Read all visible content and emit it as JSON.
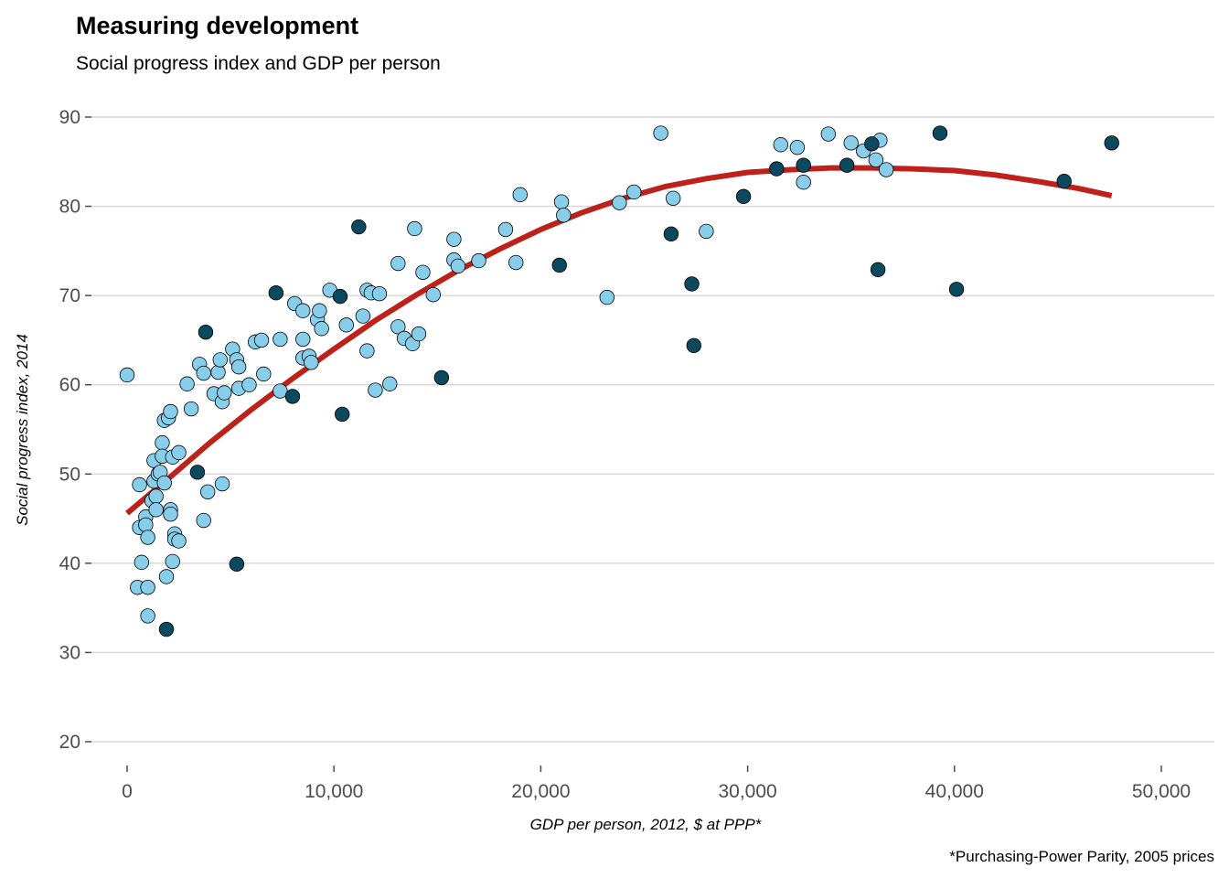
{
  "chart_data": {
    "type": "scatter",
    "title": "Measuring development",
    "subtitle": "Social progress index and GDP per person",
    "xlabel": "GDP per person, 2012, $ at PPP*",
    "ylabel": "Social progress index, 2014",
    "caption": "*Purchasing-Power Parity, 2005 prices",
    "xlim": [
      -2500,
      52000
    ],
    "ylim": [
      18,
      93
    ],
    "x_ticks": [
      0,
      10000,
      20000,
      30000,
      40000,
      50000
    ],
    "x_tick_labels": [
      "0",
      "10,000",
      "20,000",
      "30,000",
      "40,000",
      "50,000"
    ],
    "y_ticks": [
      20,
      30,
      40,
      50,
      60,
      70,
      80,
      90
    ],
    "y_tick_labels": [
      "20",
      "30",
      "40",
      "50",
      "60",
      "70",
      "80",
      "90"
    ],
    "grid": "horizontal",
    "legend": "none",
    "colors": {
      "light": "#87CEEB",
      "dark": "#0B4A5E",
      "trend": "#C0201A",
      "outline": "#000000"
    },
    "series": [
      {
        "color": "#87CEEB",
        "points": [
          [
            0,
            61.1
          ],
          [
            600,
            48.8
          ],
          [
            600,
            44.0
          ],
          [
            700,
            40.1
          ],
          [
            500,
            37.3
          ],
          [
            900,
            45.2
          ],
          [
            900,
            44.3
          ],
          [
            1000,
            42.9
          ],
          [
            1000,
            37.3
          ],
          [
            1000,
            34.1
          ],
          [
            1200,
            47.0
          ],
          [
            1300,
            49.2
          ],
          [
            1300,
            51.5
          ],
          [
            1400,
            47.5
          ],
          [
            1400,
            46.0
          ],
          [
            1500,
            50.0
          ],
          [
            1600,
            50.2
          ],
          [
            1700,
            53.5
          ],
          [
            1700,
            52.0
          ],
          [
            1800,
            49.0
          ],
          [
            1800,
            56.0
          ],
          [
            1900,
            38.5
          ],
          [
            2000,
            56.3
          ],
          [
            2100,
            57.0
          ],
          [
            2100,
            46.0
          ],
          [
            2100,
            45.5
          ],
          [
            2200,
            40.2
          ],
          [
            2200,
            51.9
          ],
          [
            2300,
            43.3
          ],
          [
            2300,
            42.7
          ],
          [
            2500,
            52.4
          ],
          [
            2500,
            42.5
          ],
          [
            2900,
            60.1
          ],
          [
            3100,
            57.3
          ],
          [
            3500,
            62.3
          ],
          [
            3700,
            61.3
          ],
          [
            3700,
            44.8
          ],
          [
            3900,
            48.0
          ],
          [
            4200,
            59.0
          ],
          [
            4400,
            61.4
          ],
          [
            4500,
            62.8
          ],
          [
            4600,
            58.1
          ],
          [
            4600,
            48.9
          ],
          [
            4700,
            59.1
          ],
          [
            5100,
            64.0
          ],
          [
            5300,
            62.8
          ],
          [
            5400,
            62.0
          ],
          [
            5400,
            59.6
          ],
          [
            5900,
            60.0
          ],
          [
            6200,
            64.8
          ],
          [
            6500,
            65.0
          ],
          [
            6600,
            61.2
          ],
          [
            7400,
            65.1
          ],
          [
            7400,
            59.3
          ],
          [
            8100,
            69.1
          ],
          [
            8500,
            68.3
          ],
          [
            8500,
            63.0
          ],
          [
            8500,
            65.1
          ],
          [
            8800,
            63.2
          ],
          [
            8900,
            62.5
          ],
          [
            9200,
            67.3
          ],
          [
            9300,
            68.3
          ],
          [
            9400,
            66.3
          ],
          [
            9800,
            70.6
          ],
          [
            10600,
            66.7
          ],
          [
            11400,
            67.7
          ],
          [
            11600,
            63.8
          ],
          [
            11600,
            70.6
          ],
          [
            11800,
            70.3
          ],
          [
            12000,
            59.4
          ],
          [
            12200,
            70.2
          ],
          [
            12700,
            60.1
          ],
          [
            13100,
            73.6
          ],
          [
            13100,
            66.5
          ],
          [
            13400,
            65.2
          ],
          [
            13800,
            64.6
          ],
          [
            13900,
            77.5
          ],
          [
            14100,
            65.7
          ],
          [
            14300,
            72.6
          ],
          [
            14800,
            70.1
          ],
          [
            15800,
            76.3
          ],
          [
            15800,
            74.0
          ],
          [
            16000,
            73.3
          ],
          [
            17000,
            73.9
          ],
          [
            18300,
            77.4
          ],
          [
            18800,
            73.7
          ],
          [
            19000,
            81.3
          ],
          [
            21000,
            80.5
          ],
          [
            21100,
            79.0
          ],
          [
            23200,
            69.8
          ],
          [
            23800,
            80.4
          ],
          [
            24500,
            81.6
          ],
          [
            25800,
            88.2
          ],
          [
            26400,
            80.9
          ],
          [
            28000,
            77.2
          ],
          [
            31600,
            86.9
          ],
          [
            32400,
            86.6
          ],
          [
            32700,
            82.7
          ],
          [
            33900,
            88.1
          ],
          [
            35000,
            87.1
          ],
          [
            35600,
            86.2
          ],
          [
            36200,
            85.2
          ],
          [
            36400,
            87.4
          ],
          [
            36700,
            84.1
          ]
        ]
      },
      {
        "color": "#0B4A5E",
        "points": [
          [
            1900,
            32.6
          ],
          [
            3400,
            50.2
          ],
          [
            3800,
            65.9
          ],
          [
            5300,
            39.9
          ],
          [
            7200,
            70.3
          ],
          [
            8000,
            58.7
          ],
          [
            10300,
            69.9
          ],
          [
            10400,
            56.7
          ],
          [
            11200,
            77.7
          ],
          [
            15200,
            60.8
          ],
          [
            20900,
            73.4
          ],
          [
            26300,
            76.9
          ],
          [
            27300,
            71.3
          ],
          [
            27400,
            64.4
          ],
          [
            29800,
            81.1
          ],
          [
            31400,
            84.2
          ],
          [
            32700,
            84.6
          ],
          [
            34800,
            84.6
          ],
          [
            36000,
            87.0
          ],
          [
            36300,
            72.9
          ],
          [
            39300,
            88.2
          ],
          [
            40100,
            70.7
          ],
          [
            45300,
            82.8
          ],
          [
            47600,
            87.1
          ]
        ]
      }
    ],
    "trend_line": {
      "type": "smooth",
      "x": [
        0,
        2000,
        4000,
        6000,
        8000,
        10000,
        12000,
        14000,
        16000,
        18000,
        20000,
        22000,
        24000,
        26000,
        28000,
        30000,
        32000,
        34000,
        36000,
        38000,
        40000,
        42000,
        44000,
        46000,
        47600
      ],
      "y": [
        45.6,
        49.5,
        53.5,
        57.2,
        60.7,
        64.0,
        67.2,
        70.1,
        72.8,
        75.2,
        77.4,
        79.3,
        80.9,
        82.2,
        83.1,
        83.8,
        84.1,
        84.3,
        84.3,
        84.2,
        84.0,
        83.5,
        82.8,
        82.0,
        81.2
      ]
    }
  }
}
